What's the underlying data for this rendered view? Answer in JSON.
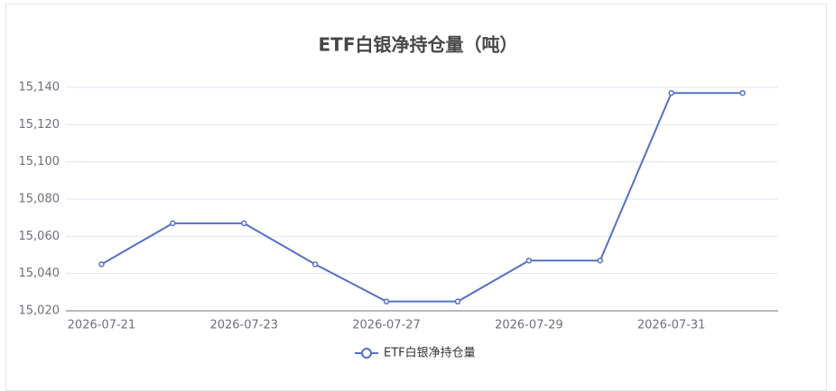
{
  "chart_data": {
    "type": "line",
    "title": "ETF白银净持仓量（吨）",
    "categories": [
      "2026-07-21",
      null,
      "2026-07-23",
      null,
      "2026-07-27",
      null,
      "2026-07-29",
      null,
      "2026-07-31",
      null
    ],
    "series": [
      {
        "name": "ETF白银净持仓量",
        "color": "#5470c6",
        "values": [
          15045,
          15067,
          15067,
          15045,
          15025,
          15025,
          15047,
          15047,
          15137,
          15137
        ]
      }
    ],
    "ylim": [
      15020,
      15140
    ],
    "yticks": [
      {
        "value": 15020,
        "label": "15,020"
      },
      {
        "value": 15040,
        "label": "15,040"
      },
      {
        "value": 15060,
        "label": "15,060"
      },
      {
        "value": 15080,
        "label": "15,080"
      },
      {
        "value": 15100,
        "label": "15,100"
      },
      {
        "value": 15120,
        "label": "15,120"
      },
      {
        "value": 15140,
        "label": "15,140"
      }
    ],
    "grid": true
  }
}
